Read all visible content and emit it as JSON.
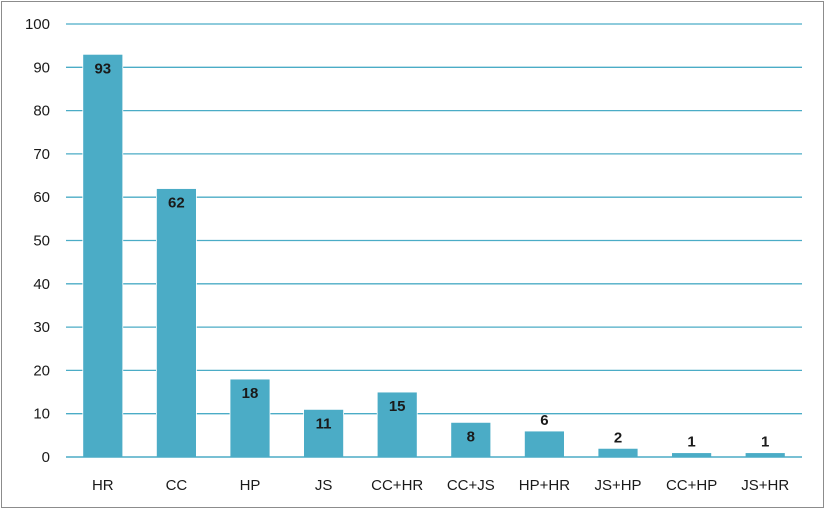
{
  "chart_data": {
    "type": "bar",
    "categories": [
      "HR",
      "CC",
      "HP",
      "JS",
      "CC+HR",
      "CC+JS",
      "HP+HR",
      "JS+HP",
      "CC+HP",
      "JS+HR"
    ],
    "values": [
      93,
      62,
      18,
      11,
      15,
      8,
      6,
      2,
      1,
      1
    ],
    "title": "",
    "xlabel": "",
    "ylabel": "",
    "ylim": [
      0,
      100
    ],
    "yticks": [
      0,
      10,
      20,
      30,
      40,
      50,
      60,
      70,
      80,
      90,
      100
    ],
    "grid": true,
    "legend": "none",
    "bar_color": "#4bacc6",
    "grid_color": "#4bacc6",
    "data_labels": true
  }
}
